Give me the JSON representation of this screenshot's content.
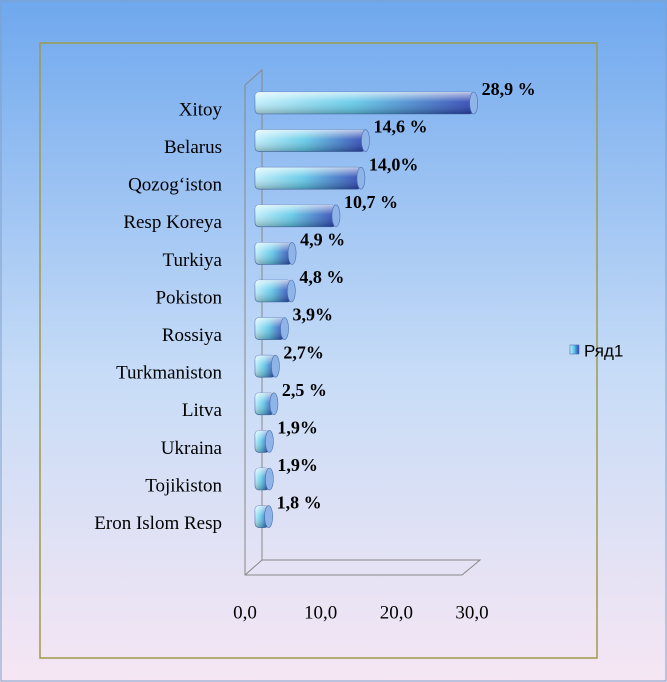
{
  "chart_data": {
    "type": "bar",
    "orientation": "horizontal",
    "categories": [
      "Xitoy",
      "Belarus",
      "Qozog‘iston",
      "Resp Koreya",
      "Turkiya",
      "Pokiston",
      "Rossiya",
      "Turkmaniston",
      "Litva",
      "Ukraina",
      "Tojikiston",
      "Eron Islom Resp"
    ],
    "series": [
      {
        "name": "Ряд1",
        "color": "#2a3fb0",
        "values": [
          28.9,
          14.6,
          14.0,
          10.7,
          4.9,
          4.8,
          3.9,
          2.7,
          2.5,
          1.9,
          1.9,
          1.8
        ],
        "value_labels": [
          "28,9 %",
          "14,6 %",
          "14,0%",
          "10,7 %",
          "4,9 %",
          "4,8 %",
          "3,9%",
          "2,7%",
          "2,5 %",
          "1,9%",
          "1,9%",
          "1,8 %"
        ]
      }
    ],
    "xlim": [
      0,
      30
    ],
    "xticks": [
      {
        "value": 0,
        "label": "0,0"
      },
      {
        "value": 10,
        "label": "10,0"
      },
      {
        "value": 20,
        "label": "20,0"
      },
      {
        "value": 30,
        "label": "30,0"
      }
    ],
    "legend": "right"
  }
}
